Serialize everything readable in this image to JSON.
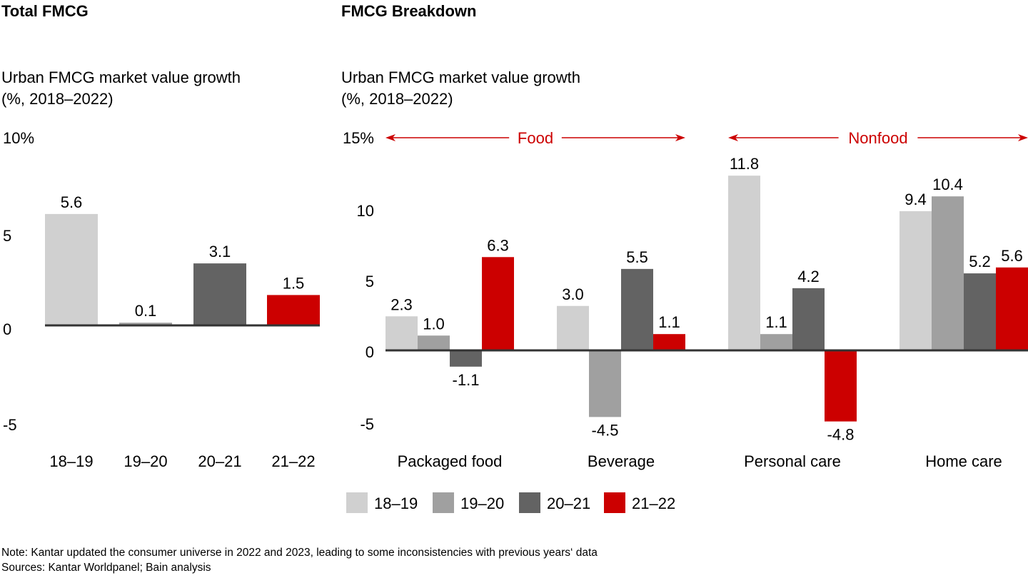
{
  "colors": {
    "s1819": "#d0d0d0",
    "s1920": "#a0a0a0",
    "s2021": "#636363",
    "s2122": "#cc0000",
    "axis": "#333333",
    "accent": "#cc0000"
  },
  "left": {
    "title": "Total FMCG",
    "subtitle_line1": "Urban FMCG market value growth",
    "subtitle_line2": "(%, 2018–2022)"
  },
  "right": {
    "title": "FMCG Breakdown",
    "subtitle_line1": "Urban FMCG market value growth",
    "subtitle_line2": "(%, 2018–2022)",
    "bracket_food": "Food",
    "bracket_nonfood": "Nonfood"
  },
  "footer": {
    "note": "Note: Kantar updated the consumer universe in 2022 and 2023, leading to some inconsistencies with previous years‘ data",
    "sources": "Sources: Kantar Worldpanel; Bain analysis"
  },
  "chart_data": [
    {
      "type": "bar",
      "title": "Total FMCG",
      "ylabel": "Urban FMCG market value growth (%, 2018–2022)",
      "xlabel": "",
      "ylim": [
        -5,
        10
      ],
      "yticks": [
        {
          "value": 10,
          "label": "10%"
        },
        {
          "value": 5,
          "label": "5"
        },
        {
          "value": 0,
          "label": "0"
        },
        {
          "value": -5,
          "label": "-5"
        }
      ],
      "categories": [
        "18–19",
        "19–20",
        "20–21",
        "21–22"
      ],
      "values": [
        5.6,
        0.1,
        3.1,
        1.5
      ],
      "labels": [
        "5.6",
        "0.1",
        "3.1",
        "1.5"
      ],
      "grid": false
    },
    {
      "type": "bar",
      "title": "FMCG Breakdown",
      "ylabel": "Urban FMCG market value growth (%, 2018–2022)",
      "xlabel": "",
      "ylim": [
        -5,
        15
      ],
      "yticks": [
        {
          "value": 15,
          "label": "15%"
        },
        {
          "value": 10,
          "label": "10"
        },
        {
          "value": 5,
          "label": "5"
        },
        {
          "value": 0,
          "label": "0"
        },
        {
          "value": -5,
          "label": "-5"
        }
      ],
      "categories": [
        "Packaged food",
        "Beverage",
        "Personal care",
        "Home care"
      ],
      "groups": [
        {
          "name": "Food",
          "categories": [
            "Packaged food",
            "Beverage"
          ]
        },
        {
          "name": "Nonfood",
          "categories": [
            "Personal care",
            "Home care"
          ]
        }
      ],
      "series": [
        {
          "name": "18–19",
          "color_key": "s1819",
          "values": [
            2.3,
            3.0,
            11.8,
            9.4
          ],
          "labels": [
            "2.3",
            "3.0",
            "11.8",
            "9.4"
          ]
        },
        {
          "name": "19–20",
          "color_key": "s1920",
          "values": [
            1.0,
            -4.5,
            1.1,
            10.4
          ],
          "labels": [
            "1.0",
            "-4.5",
            "1.1",
            "10.4"
          ]
        },
        {
          "name": "20–21",
          "color_key": "s2021",
          "values": [
            -1.1,
            5.5,
            4.2,
            5.2
          ],
          "labels": [
            "-1.1",
            "5.5",
            "4.2",
            "5.2"
          ]
        },
        {
          "name": "21–22",
          "color_key": "s2122",
          "values": [
            6.3,
            1.1,
            -4.8,
            5.6
          ],
          "labels": [
            "6.3",
            "1.1",
            "-4.8",
            "5.6"
          ]
        }
      ],
      "legend": {
        "position": "bottom",
        "entries": [
          "18–19",
          "19–20",
          "20–21",
          "21–22"
        ]
      },
      "grid": false
    }
  ]
}
